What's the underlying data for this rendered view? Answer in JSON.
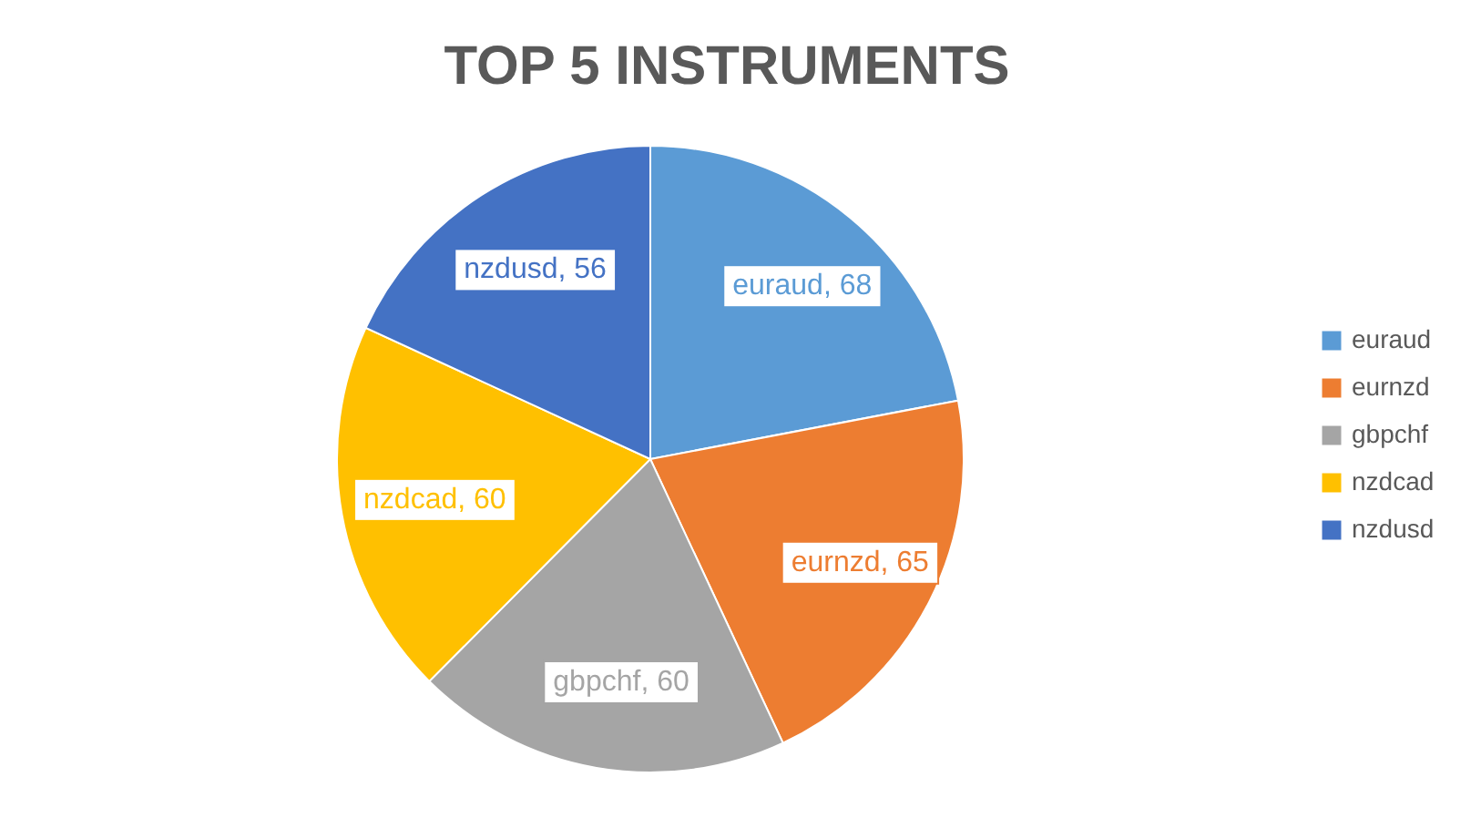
{
  "chart_data": {
    "type": "pie",
    "title": "TOP 5 INSTRUMENTS",
    "categories": [
      "euraud",
      "eurnzd",
      "gbpchf",
      "nzdcad",
      "nzdusd"
    ],
    "values": [
      68,
      65,
      60,
      60,
      56
    ],
    "value_labels": [
      ", 68",
      ", 65",
      ", 60",
      ", 60",
      ", 56"
    ],
    "colors": [
      "#5b9bd5",
      "#ed7d31",
      "#a5a5a5",
      "#ffc000",
      "#4472c4"
    ],
    "legend": "right"
  }
}
